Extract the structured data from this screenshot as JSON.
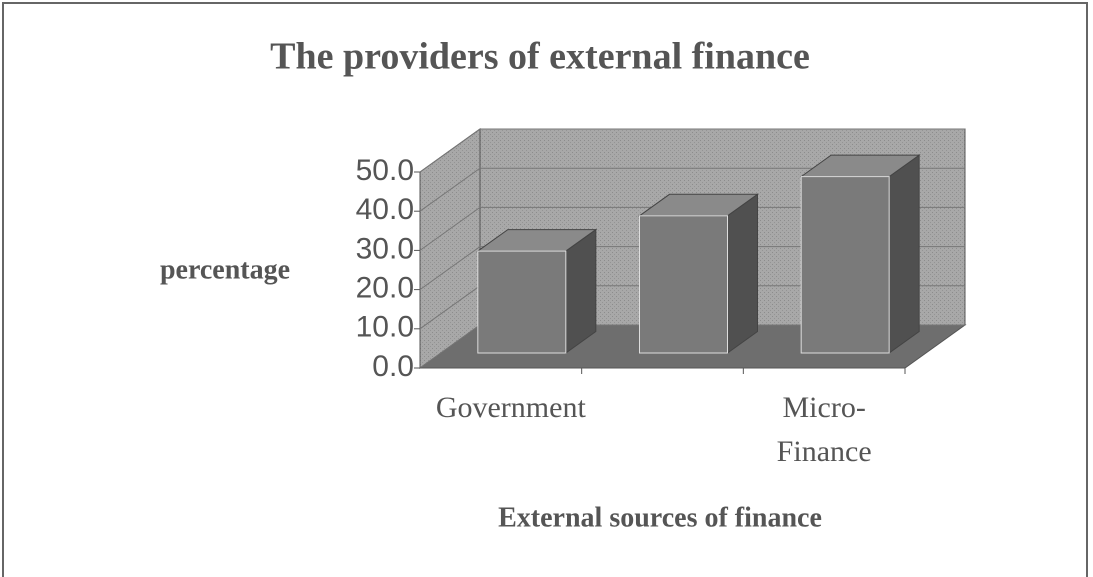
{
  "chart_data": {
    "type": "bar3d",
    "title": "The providers of external finance",
    "y_label": "percentage",
    "x_label": "External sources of finance",
    "categories": [
      "Government",
      null,
      "Micro-Finance"
    ],
    "values": [
      26,
      35,
      45
    ],
    "color": "#7a7a7a",
    "ylim": [
      0,
      50
    ],
    "yticks": [
      {
        "value": 0,
        "label": "0.0"
      },
      {
        "value": 10,
        "label": "10.0"
      },
      {
        "value": 20,
        "label": "20.0"
      },
      {
        "value": 30,
        "label": "30.0"
      },
      {
        "value": 40,
        "label": "40.0"
      },
      {
        "value": 50,
        "label": "50.0"
      }
    ],
    "grid": true
  }
}
